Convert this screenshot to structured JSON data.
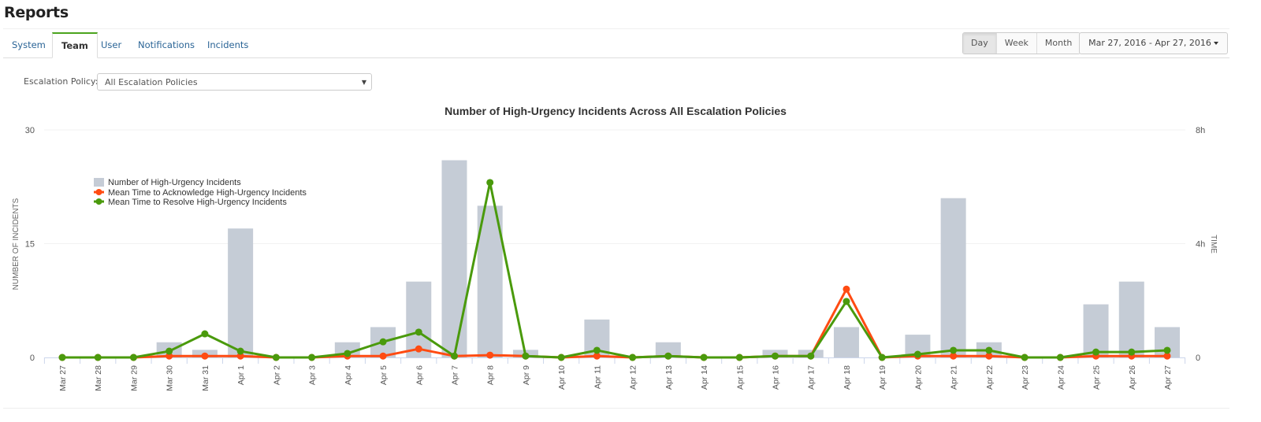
{
  "page": {
    "title": "Reports"
  },
  "tabs": [
    {
      "label": "System",
      "active": false
    },
    {
      "label": "Team",
      "active": true
    },
    {
      "label": "User",
      "active": false
    },
    {
      "label": "Notifications",
      "active": false
    },
    {
      "label": "Incidents",
      "active": false
    }
  ],
  "granularity": {
    "options": [
      "Day",
      "Week",
      "Month"
    ],
    "selected": "Day"
  },
  "date_range": {
    "label": "Mar 27, 2016 - Apr 27, 2016"
  },
  "filter": {
    "label": "Escalation Policy:",
    "value": "All Escalation Policies"
  },
  "colors": {
    "bars": "#c5ccd6",
    "acknowledge": "#ff4b12",
    "resolve": "#4a9a0c",
    "grid": "#f2f2f2",
    "axis": "#ccd6eb"
  },
  "chart_data": {
    "type": "bar",
    "title": "Number of High-Urgency Incidents Across All Escalation Policies",
    "xlabel": "",
    "ylabel": "NUMBER OF INCIDENTS",
    "y2label": "TIME",
    "ylim": [
      0,
      30
    ],
    "y2lim": [
      0,
      8
    ],
    "yticks": [
      "0",
      "15",
      "30"
    ],
    "y2ticks": [
      "0",
      "4h",
      "8h"
    ],
    "grid": true,
    "legend_position": "top-left-inside",
    "categories": [
      "Mar 27",
      "Mar 28",
      "Mar 29",
      "Mar 30",
      "Mar 31",
      "Apr 1",
      "Apr 2",
      "Apr 3",
      "Apr 4",
      "Apr 5",
      "Apr 6",
      "Apr 7",
      "Apr 8",
      "Apr 9",
      "Apr 10",
      "Apr 11",
      "Apr 12",
      "Apr 13",
      "Apr 14",
      "Apr 15",
      "Apr 16",
      "Apr 17",
      "Apr 18",
      "Apr 19",
      "Apr 20",
      "Apr 21",
      "Apr 22",
      "Apr 23",
      "Apr 24",
      "Apr 25",
      "Apr 26",
      "Apr 27"
    ],
    "series": [
      {
        "name": "Number of High-Urgency Incidents",
        "type": "bar",
        "axis": "left",
        "values": [
          0,
          0,
          0,
          2,
          1,
          17,
          0,
          0,
          2,
          4,
          10,
          26,
          20,
          1,
          0,
          5,
          0,
          2,
          0,
          0,
          1,
          1,
          4,
          0,
          3,
          21,
          2,
          0,
          0,
          7,
          10,
          4
        ]
      },
      {
        "name": "Mean Time to Acknowledge High-Urgency Incidents",
        "type": "line",
        "axis": "right",
        "unit": "hours",
        "values": [
          0,
          0,
          0,
          0.05,
          0.05,
          0.05,
          0,
          0,
          0.05,
          0.05,
          0.3,
          0.05,
          0.08,
          0.05,
          0,
          0.05,
          0,
          0.05,
          0,
          0,
          0.05,
          0.05,
          2.4,
          0,
          0.05,
          0.05,
          0.05,
          0,
          0,
          0.05,
          0.05,
          0.05
        ]
      },
      {
        "name": "Mean Time to Resolve High-Urgency Incidents",
        "type": "line",
        "axis": "right",
        "unit": "hours",
        "values": [
          0,
          0,
          0,
          0.22,
          0.83,
          0.22,
          0,
          0,
          0.14,
          0.55,
          0.89,
          0.05,
          6.15,
          0.05,
          0,
          0.25,
          0,
          0.05,
          0,
          0,
          0.05,
          0.05,
          1.97,
          0,
          0.11,
          0.25,
          0.25,
          0,
          0,
          0.19,
          0.19,
          0.25
        ]
      }
    ]
  }
}
